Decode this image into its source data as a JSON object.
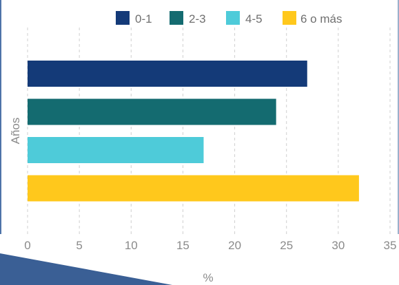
{
  "chart_data": {
    "type": "bar",
    "orientation": "horizontal",
    "xlabel": "%",
    "ylabel": "Años",
    "xlim": [
      0,
      35
    ],
    "xticks": [
      "0",
      "5",
      "10",
      "15",
      "20",
      "25",
      "30",
      "35"
    ],
    "grid": "vertical dashed",
    "legend_position": "top",
    "series": [
      {
        "name": "0-1",
        "value": 27,
        "color": "#143a78"
      },
      {
        "name": "2-3",
        "value": 24,
        "color": "#146b70"
      },
      {
        "name": "4-5",
        "value": 17,
        "color": "#4ecbd9"
      },
      {
        "name": "6 o más",
        "value": 32,
        "color": "#ffc81c"
      }
    ]
  },
  "colors": {
    "grid": "#cfcfcf",
    "accent_shape": "#3a5f95"
  }
}
